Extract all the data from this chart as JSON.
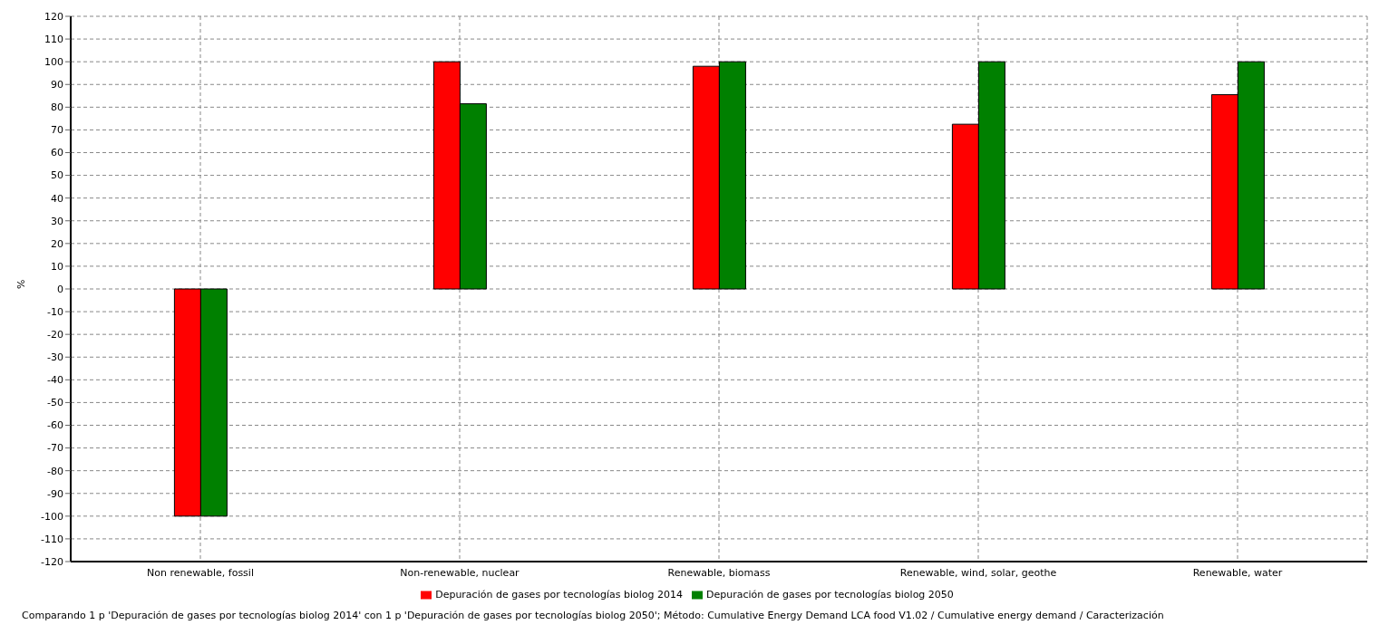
{
  "chart_data": {
    "type": "bar",
    "ylabel": "%",
    "categories": [
      "Non renewable, fossil",
      "Non-renewable, nuclear",
      "Renewable, biomass",
      "Renewable, wind, solar, geothe",
      "Renewable, water"
    ],
    "series": [
      {
        "name": "Depuración de gases por tecnologías biolog 2014",
        "color": "#ff0000",
        "values": [
          -100,
          100,
          98,
          72.5,
          85.5
        ]
      },
      {
        "name": "Depuración de gases por tecnologías biolog 2050",
        "color": "#008000",
        "values": [
          -100,
          81.5,
          100,
          100,
          100
        ]
      }
    ],
    "ylim": [
      -120,
      120
    ],
    "yticks": [
      -120,
      -110,
      -100,
      -90,
      -80,
      -70,
      -60,
      -50,
      -40,
      -30,
      -20,
      -10,
      0,
      10,
      20,
      30,
      40,
      50,
      60,
      70,
      80,
      90,
      100,
      110,
      120
    ],
    "grid": true,
    "legend": "bottom",
    "annotations": [
      "Comparando 1 p 'Depuración de gases por tecnologías biolog 2014' con 1 p 'Depuración de gases por tecnologías biolog 2050';  Método: Cumulative Energy Demand LCA food V1.02 /  Cumulative energy demand / Caracterización"
    ]
  }
}
